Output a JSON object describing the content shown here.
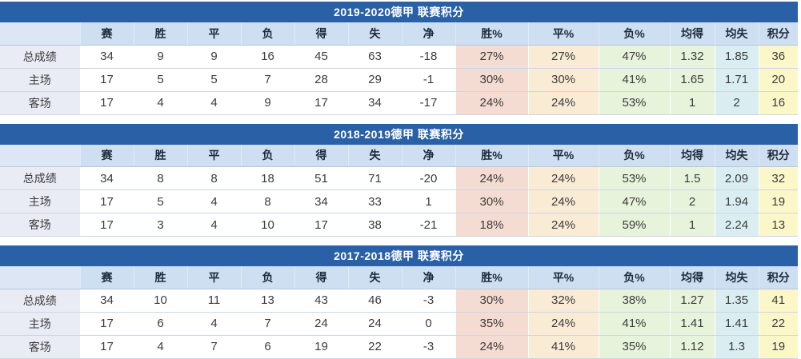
{
  "columns": [
    "",
    "赛",
    "胜",
    "平",
    "负",
    "得",
    "失",
    "净",
    "胜%",
    "平%",
    "负%",
    "均得",
    "均失",
    "积分"
  ],
  "tables": [
    {
      "season": "2019-2020",
      "title": "2019-2020德甲 联赛积分",
      "rows": [
        {
          "label": "总成绩",
          "values": [
            "34",
            "9",
            "9",
            "16",
            "45",
            "63",
            "-18",
            "27%",
            "27%",
            "47%",
            "1.32",
            "1.85",
            "36"
          ]
        },
        {
          "label": "主场",
          "values": [
            "17",
            "5",
            "5",
            "7",
            "28",
            "29",
            "-1",
            "30%",
            "30%",
            "41%",
            "1.65",
            "1.71",
            "20"
          ]
        },
        {
          "label": "客场",
          "values": [
            "17",
            "4",
            "4",
            "9",
            "17",
            "34",
            "-17",
            "24%",
            "24%",
            "53%",
            "1",
            "2",
            "16"
          ]
        }
      ]
    },
    {
      "season": "2018-2019",
      "title": "2018-2019德甲 联赛积分",
      "rows": [
        {
          "label": "总成绩",
          "values": [
            "34",
            "8",
            "8",
            "18",
            "51",
            "71",
            "-20",
            "24%",
            "24%",
            "53%",
            "1.5",
            "2.09",
            "32"
          ]
        },
        {
          "label": "主场",
          "values": [
            "17",
            "5",
            "4",
            "8",
            "34",
            "33",
            "1",
            "30%",
            "24%",
            "47%",
            "2",
            "1.94",
            "19"
          ]
        },
        {
          "label": "客场",
          "values": [
            "17",
            "3",
            "4",
            "10",
            "17",
            "38",
            "-21",
            "18%",
            "24%",
            "59%",
            "1",
            "2.24",
            "13"
          ]
        }
      ]
    },
    {
      "season": "2017-2018",
      "title": "2017-2018德甲 联赛积分",
      "rows": [
        {
          "label": "总成绩",
          "values": [
            "34",
            "10",
            "11",
            "13",
            "43",
            "46",
            "-3",
            "30%",
            "32%",
            "38%",
            "1.27",
            "1.35",
            "41"
          ]
        },
        {
          "label": "主场",
          "values": [
            "17",
            "6",
            "4",
            "7",
            "24",
            "24",
            "0",
            "35%",
            "24%",
            "41%",
            "1.41",
            "1.41",
            "22"
          ]
        },
        {
          "label": "客场",
          "values": [
            "17",
            "4",
            "7",
            "6",
            "19",
            "22",
            "-3",
            "24%",
            "41%",
            "35%",
            "1.12",
            "1.3",
            "19"
          ]
        }
      ]
    }
  ],
  "colors": {
    "title_bar_bg": "#2A61A6",
    "title_text": "#FFFFFF",
    "header_row_bg": "#CEDFF1",
    "header_corner_bg": "#DCE6F4",
    "header_text": "#1E2B3C",
    "label_column_bg": "#E9ECF5",
    "win_pct_cell_bg": "#F5DCD2",
    "draw_pct_cell_bg": "#FAEBD5",
    "loss_pct_cell_bg": "#E7F3DB",
    "avg_goals_for_cell_bg": "#E7F3DB",
    "avg_goals_against_cell_bg": "#DAEDF1",
    "points_cell_bg": "#FCF7C8",
    "cell_text": "#3C3C3C"
  }
}
